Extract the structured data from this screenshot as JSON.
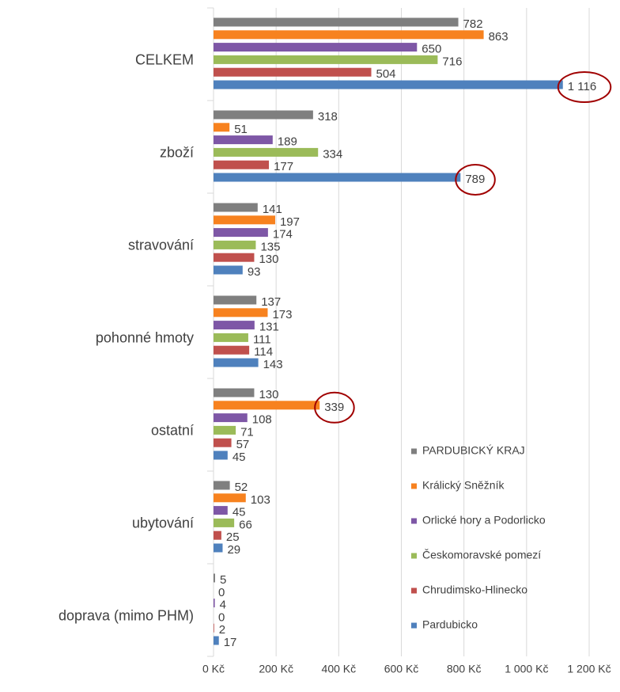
{
  "chart_data": {
    "type": "bar",
    "orientation": "horizontal",
    "categories": [
      "CELKEM",
      "zboží",
      "stravování",
      "pohonné hmoty",
      "ostatní",
      "ubytování",
      "doprava (mimo PHM)"
    ],
    "series": [
      {
        "name": "PARDUBICKÝ KRAJ",
        "color": "#7f7f7f",
        "values": [
          782,
          318,
          141,
          137,
          130,
          52,
          5
        ]
      },
      {
        "name": "Králický Sněžník",
        "color": "#f7821f",
        "values": [
          863,
          51,
          197,
          173,
          339,
          103,
          0
        ]
      },
      {
        "name": "Orlické hory a Podorlicko",
        "color": "#7e57a6",
        "values": [
          650,
          189,
          174,
          131,
          108,
          45,
          4
        ]
      },
      {
        "name": "Českomoravské pomezí",
        "color": "#9bbb59",
        "values": [
          716,
          334,
          135,
          111,
          71,
          66,
          0
        ]
      },
      {
        "name": "Chrudimsko-Hlinecko",
        "color": "#c0504d",
        "values": [
          504,
          177,
          130,
          114,
          57,
          25,
          2
        ]
      },
      {
        "name": "Pardubicko",
        "color": "#4f81bd",
        "values": [
          1116,
          789,
          93,
          143,
          45,
          29,
          17
        ],
        "value_labels": [
          "1 116",
          "789",
          "93",
          "143",
          "45",
          "29",
          "17"
        ]
      }
    ],
    "xlim": [
      0,
      1200
    ],
    "xticks": [
      {
        "value": 0,
        "label": "0 Kč"
      },
      {
        "value": 200,
        "label": "200 Kč"
      },
      {
        "value": 400,
        "label": "400 Kč"
      },
      {
        "value": 600,
        "label": "600 Kč"
      },
      {
        "value": 800,
        "label": "800 Kč"
      },
      {
        "value": 1000,
        "label": "1 000 Kč"
      },
      {
        "value": 1200,
        "label": "1 200 Kč"
      }
    ],
    "grid": true,
    "legend": "right"
  }
}
